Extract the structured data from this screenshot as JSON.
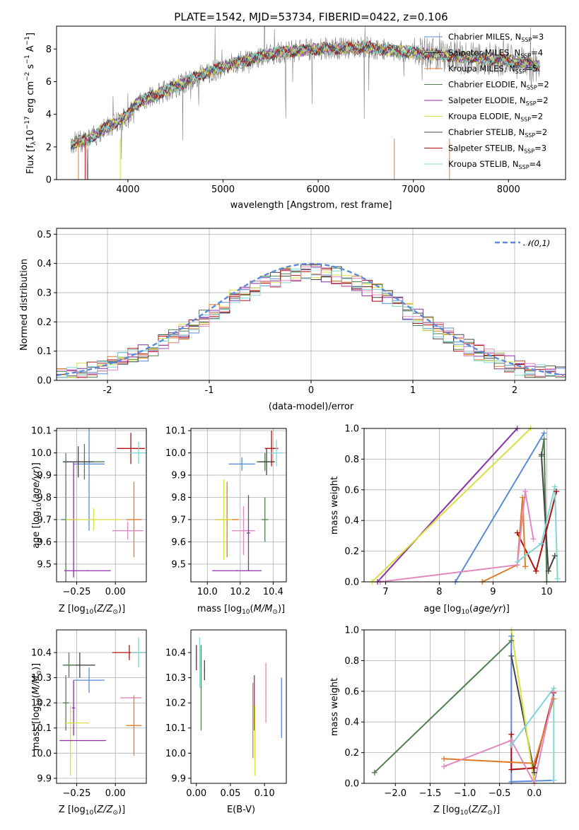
{
  "chart_data": [
    {
      "id": "spectrum",
      "type": "line",
      "title": "PLATE=1542, MJD=53734, FIBERID=0422, z=0.106",
      "xlabel": "wavelength [Angstrom, rest frame]",
      "ylabel": "Flux [f_λ 10^-17 erg cm^-2 s^-1 A^-1]",
      "xlim": [
        3250,
        8600
      ],
      "ylim": [
        0,
        9.4
      ],
      "xticks": [
        4000,
        5000,
        6000,
        7000,
        8000
      ],
      "yticks": [
        0,
        2,
        4,
        6,
        8
      ],
      "grid": false,
      "legend_placement": "top-right",
      "legend": [
        {
          "main": "Chabrier MILES, N",
          "sub": "SSP",
          "tail": "=3",
          "color": "#5b8bd8"
        },
        {
          "main": "Salpeter MILES, N",
          "sub": "SSP",
          "tail": "=4",
          "color": "#333333"
        },
        {
          "main": "Kroupa MILES, N",
          "sub": "SSP",
          "tail": "=5",
          "color": "#e07b2a"
        },
        {
          "main": "Chabrier ELODIE, N",
          "sub": "SSP",
          "tail": "=2",
          "color": "#4f7f4f"
        },
        {
          "main": "Salpeter ELODIE, N",
          "sub": "SSP",
          "tail": "=2",
          "color": "#8b2fa8"
        },
        {
          "main": "Kroupa ELODIE, N",
          "sub": "SSP",
          "tail": "=2",
          "color": "#d8e040"
        },
        {
          "main": "Chabrier STELIB, N",
          "sub": "SSP",
          "tail": "=2",
          "color": "#444444"
        },
        {
          "main": "Salpeter STELIB, N",
          "sub": "SSP",
          "tail": "=3",
          "color": "#b01010"
        },
        {
          "main": "Kroupa STELIB, N",
          "sub": "SSP",
          "tail": "=4",
          "color": "#7fd6d6"
        }
      ],
      "data_color": "#808080",
      "model_color": "#7fd6d6",
      "continuum_x": [
        3400,
        3600,
        3800,
        3950,
        4100,
        4300,
        4500,
        4800,
        5000,
        5300,
        5600,
        6000,
        6500,
        7000,
        7500,
        8000,
        8300
      ],
      "continuum_y": [
        2.2,
        2.5,
        3.3,
        3.7,
        4.7,
        5.2,
        5.7,
        6.5,
        6.9,
        7.4,
        7.8,
        8.0,
        8.1,
        7.8,
        7.5,
        7.3,
        7.0
      ]
    },
    {
      "id": "residuals",
      "type": "bar",
      "xlabel": "(data-model)/error",
      "ylabel": "Normed distribution",
      "xlim": [
        -2.5,
        2.5
      ],
      "ylim": [
        0,
        0.52
      ],
      "xticks": [
        -2,
        -1,
        0,
        1,
        2
      ],
      "yticks": [
        0.0,
        0.1,
        0.2,
        0.3,
        0.4,
        0.5
      ],
      "grid": true,
      "legend_placement": "top-right",
      "legend_label": "𝒩(0,1)",
      "normal_color": "#5b8bd8",
      "bin_width": 0.1,
      "series_colors": [
        "#5b8bd8",
        "#e07b2a",
        "#4f7f4f",
        "#8b2fa8",
        "#d8e040",
        "#444444",
        "#b01010",
        "#7fd6d6",
        "#e088c0"
      ]
    },
    {
      "id": "age-vs-Z",
      "type": "scatter",
      "xlabel": "Z [log10(Z/Z⊙)]",
      "ylabel": "age  [log10(age/yr)]",
      "xlim": [
        -0.38,
        0.2
      ],
      "ylim": [
        9.42,
        10.11
      ],
      "xticks": [
        -0.25,
        0.0
      ],
      "xticklabels": [
        "−0.25",
        "0.00"
      ],
      "yticks": [
        9.5,
        9.6,
        9.7,
        9.8,
        9.9,
        10.0,
        10.1
      ],
      "grid": true,
      "points": [
        {
          "x": -0.17,
          "y": 9.95,
          "xerr": 0.1,
          "yerr": 0.3,
          "color": "#5b8bd8"
        },
        {
          "x": -0.2,
          "y": 9.96,
          "xerr": 0.13,
          "yerr": 0.08,
          "color": "#4f7f4f"
        },
        {
          "x": -0.24,
          "y": 9.96,
          "xerr": 0.1,
          "yerr": 0.07,
          "color": "#444444"
        },
        {
          "x": 0.1,
          "y": 10.02,
          "xerr": 0.09,
          "yerr": 0.07,
          "color": "#b01010"
        },
        {
          "x": 0.15,
          "y": 10.0,
          "xerr": 0.06,
          "yerr": 0.05,
          "color": "#7fd6d6"
        },
        {
          "x": -0.32,
          "y": 9.7,
          "xerr": 0.03,
          "yerr": 0.3,
          "color": "#4f7f4f"
        },
        {
          "x": -0.27,
          "y": 9.7,
          "xerr": 0.02,
          "yerr": 0.26,
          "color": "#8b2fa8"
        },
        {
          "x": -0.14,
          "y": 9.7,
          "xerr": 0.18,
          "yerr": 0.05,
          "color": "#d8e040"
        },
        {
          "x": 0.12,
          "y": 9.7,
          "xerr": 0.05,
          "yerr": 0.17,
          "color": "#e07b2a"
        },
        {
          "x": 0.08,
          "y": 9.65,
          "xerr": 0.1,
          "yerr": 0.04,
          "color": "#e088c0"
        },
        {
          "x": -0.18,
          "y": 9.47,
          "xerr": 0.15,
          "yerr": 0.0,
          "color": "#8b2fa8"
        }
      ]
    },
    {
      "id": "age-vs-mass",
      "type": "scatter",
      "xlabel": "mass [log10(M/M⊙)]",
      "ylabel": "",
      "xlim": [
        9.9,
        10.48
      ],
      "ylim": [
        9.42,
        10.11
      ],
      "xticks": [
        10.0,
        10.2,
        10.4
      ],
      "xticklabels": [
        "10.0",
        "10.2",
        "10.4"
      ],
      "yticks": [
        9.5,
        9.6,
        9.7,
        9.8,
        9.9,
        10.0,
        10.1
      ],
      "grid": true,
      "points": [
        {
          "x": 10.21,
          "y": 9.95,
          "xerr": 0.08,
          "yerr": 0.03,
          "color": "#5b8bd8"
        },
        {
          "x": 10.35,
          "y": 9.96,
          "xerr": 0.05,
          "yerr": 0.04,
          "color": "#4f7f4f"
        },
        {
          "x": 10.36,
          "y": 9.96,
          "xerr": 0.05,
          "yerr": 0.06,
          "color": "#444444"
        },
        {
          "x": 10.39,
          "y": 10.02,
          "xerr": 0.04,
          "yerr": 0.08,
          "color": "#b01010"
        },
        {
          "x": 10.42,
          "y": 10.0,
          "xerr": 0.04,
          "yerr": 0.06,
          "color": "#7fd6d6"
        },
        {
          "x": 10.12,
          "y": 9.7,
          "xerr": 0.07,
          "yerr": 0.17,
          "color": "#e07b2a"
        },
        {
          "x": 10.1,
          "y": 9.7,
          "xerr": 0.05,
          "yerr": 0.18,
          "color": "#d8e040"
        },
        {
          "x": 10.35,
          "y": 9.7,
          "xerr": 0.02,
          "yerr": 0.1,
          "color": "#4f7f4f"
        },
        {
          "x": 10.22,
          "y": 9.65,
          "xerr": 0.07,
          "yerr": 0.11,
          "color": "#e088c0"
        },
        {
          "x": 10.25,
          "y": 9.64,
          "xerr": 0.01,
          "yerr": 0.17,
          "color": "#8b2fa8"
        },
        {
          "x": 10.18,
          "y": 9.47,
          "xerr": 0.15,
          "yerr": 0.0,
          "color": "#8b2fa8"
        }
      ]
    },
    {
      "id": "massweight-vs-age",
      "type": "line",
      "xlabel": "age  [log10(age/yr)]",
      "ylabel": "mass weight",
      "xlim": [
        6.6,
        10.35
      ],
      "ylim": [
        0,
        1.0
      ],
      "xticks": [
        7,
        8,
        9,
        10
      ],
      "yticks": [
        0.0,
        0.2,
        0.4,
        0.6,
        0.8,
        1.0
      ],
      "grid": true,
      "series": [
        {
          "color": "#8b2fa8",
          "x": [
            6.85,
            9.45
          ],
          "y": [
            0.0,
            1.0
          ]
        },
        {
          "color": "#d8e040",
          "x": [
            6.75,
            9.7
          ],
          "y": [
            0.0,
            1.0
          ]
        },
        {
          "color": "#5b8bd8",
          "x": [
            8.3,
            9.95
          ],
          "y": [
            0.0,
            0.97
          ]
        },
        {
          "color": "#4f7f4f",
          "x": [
            9.9,
            9.95,
            10.0
          ],
          "y": [
            0.82,
            0.93,
            0.0
          ]
        },
        {
          "color": "#444444",
          "x": [
            9.9,
            10.03,
            10.15
          ],
          "y": [
            0.83,
            0.07,
            0.17
          ]
        },
        {
          "color": "#b01010",
          "x": [
            9.45,
            9.8,
            10.18
          ],
          "y": [
            0.32,
            0.07,
            0.59
          ]
        },
        {
          "color": "#e07b2a",
          "x": [
            8.8,
            9.45,
            9.55,
            9.6
          ],
          "y": [
            0.0,
            0.11,
            0.55,
            0.1
          ]
        },
        {
          "color": "#e088c0",
          "x": [
            6.9,
            9.45,
            9.6,
            9.75
          ],
          "y": [
            0.0,
            0.11,
            0.59,
            0.28
          ]
        },
        {
          "color": "#7fd6d6",
          "x": [
            9.45,
            9.9,
            10.15,
            10.2
          ],
          "y": [
            0.13,
            0.25,
            0.62,
            0.02
          ]
        }
      ]
    },
    {
      "id": "mass-vs-Z",
      "type": "scatter",
      "xlabel": "Z [log10(Z/Z⊙)]",
      "ylabel": "mass [log10(M/M⊙)]",
      "xlim": [
        -0.38,
        0.2
      ],
      "ylim": [
        9.88,
        10.49
      ],
      "xticks": [
        -0.25,
        0.0
      ],
      "xticklabels": [
        "−0.25",
        "0.00"
      ],
      "yticks": [
        9.9,
        10.0,
        10.1,
        10.2,
        10.3,
        10.4
      ],
      "grid": true,
      "points": [
        {
          "x": -0.17,
          "y": 10.29,
          "xerr": 0.1,
          "yerr": 0.05,
          "color": "#5b8bd8"
        },
        {
          "x": -0.23,
          "y": 10.35,
          "xerr": 0.1,
          "yerr": 0.05,
          "color": "#444444"
        },
        {
          "x": -0.3,
          "y": 10.35,
          "xerr": 0.04,
          "yerr": 0.05,
          "color": "#4f7f4f"
        },
        {
          "x": 0.09,
          "y": 10.4,
          "xerr": 0.11,
          "yerr": 0.03,
          "color": "#b01010"
        },
        {
          "x": 0.15,
          "y": 10.4,
          "xerr": 0.05,
          "yerr": 0.06,
          "color": "#7fd6d6"
        },
        {
          "x": -0.32,
          "y": 10.2,
          "xerr": 0.02,
          "yerr": 0.11,
          "color": "#4f7f4f"
        },
        {
          "x": -0.27,
          "y": 10.18,
          "xerr": 0.01,
          "yerr": 0.11,
          "color": "#8b2fa8"
        },
        {
          "x": -0.25,
          "y": 10.12,
          "xerr": 0.08,
          "yerr": 0.0,
          "color": "#d8e040"
        },
        {
          "x": -0.29,
          "y": 10.05,
          "xerr": 0.01,
          "yerr": 0.14,
          "color": "#d8e040"
        },
        {
          "x": 0.1,
          "y": 10.22,
          "xerr": 0.07,
          "yerr": 0.0,
          "color": "#e088c0"
        },
        {
          "x": 0.12,
          "y": 10.11,
          "xerr": 0.05,
          "yerr": 0.12,
          "color": "#e07b2a"
        },
        {
          "x": -0.21,
          "y": 10.05,
          "xerr": 0.15,
          "yerr": 0.0,
          "color": "#8b2fa8"
        }
      ]
    },
    {
      "id": "mass-vs-ebv",
      "type": "scatter",
      "xlabel": "E(B-V)",
      "ylabel": "",
      "xlim": [
        -0.008,
        0.132
      ],
      "ylim": [
        9.88,
        10.49
      ],
      "xticks": [
        0.0,
        0.05,
        0.1
      ],
      "xticklabels": [
        "0.00",
        "0.05",
        "0.10"
      ],
      "yticks": [
        9.9,
        10.0,
        10.1,
        10.2,
        10.3,
        10.4
      ],
      "grid": false,
      "points": [
        {
          "x": 0.0,
          "y": 10.38,
          "xerr": 0,
          "yerr": 0.05,
          "color": "#b01010"
        },
        {
          "x": 0.005,
          "y": 10.36,
          "xerr": 0,
          "yerr": 0.1,
          "color": "#7fd6d6"
        },
        {
          "x": 0.007,
          "y": 10.26,
          "xerr": 0,
          "yerr": 0.17,
          "color": "#4f7f4f"
        },
        {
          "x": 0.012,
          "y": 10.33,
          "xerr": 0,
          "yerr": 0.04,
          "color": "#444444"
        },
        {
          "x": 0.083,
          "y": 10.13,
          "xerr": 0,
          "yerr": 0.15,
          "color": "#e07b2a"
        },
        {
          "x": 0.085,
          "y": 10.2,
          "xerr": 0,
          "yerr": 0.11,
          "color": "#8b2fa8"
        },
        {
          "x": 0.086,
          "y": 10.05,
          "xerr": 0,
          "yerr": 0.14,
          "color": "#d8e040"
        },
        {
          "x": 0.102,
          "y": 10.24,
          "xerr": 0,
          "yerr": 0.12,
          "color": "#e088c0"
        },
        {
          "x": 0.125,
          "y": 10.18,
          "xerr": 0,
          "yerr": 0.12,
          "color": "#5b8bd8"
        }
      ]
    },
    {
      "id": "massweight-vs-Z",
      "type": "line",
      "xlabel": "Z [log10(Z/Z⊙)]",
      "ylabel": "mass weight",
      "xlim": [
        -2.45,
        0.45
      ],
      "ylim": [
        0,
        1.0
      ],
      "xticks": [
        -2.0,
        -1.5,
        -1.0,
        -0.5,
        0.0
      ],
      "xticklabels": [
        "−2.0",
        "−1.5",
        "−1.0",
        "−0.5",
        "0.0"
      ],
      "yticks": [
        0.0,
        0.2,
        0.4,
        0.6,
        0.8,
        1.0
      ],
      "grid": true,
      "series": [
        {
          "color": "#4f7f4f",
          "x": [
            -2.3,
            -0.33
          ],
          "y": [
            0.07,
            0.93
          ]
        },
        {
          "color": "#5b8bd8",
          "x": [
            -0.33,
            -0.33,
            0.28
          ],
          "y": [
            0.96,
            0.01,
            0.02
          ]
        },
        {
          "color": "#444444",
          "x": [
            -0.33,
            0.0
          ],
          "y": [
            0.83,
            0.07
          ]
        },
        {
          "color": "#d8e040",
          "x": [
            -0.33,
            0.0
          ],
          "y": [
            1.0,
            0.0
          ]
        },
        {
          "color": "#b01010",
          "x": [
            -0.33,
            -0.33,
            0.0,
            0.28
          ],
          "y": [
            0.32,
            0.09,
            0.1,
            0.59
          ]
        },
        {
          "color": "#e07b2a",
          "x": [
            -1.3,
            0.0,
            0.28
          ],
          "y": [
            0.16,
            0.13,
            0.55
          ]
        },
        {
          "color": "#e088c0",
          "x": [
            -1.3,
            -0.33,
            0.0,
            0.28
          ],
          "y": [
            0.11,
            0.28,
            0.0,
            0.6
          ]
        },
        {
          "color": "#7fd6d6",
          "x": [
            -0.33,
            0.28,
            0.28
          ],
          "y": [
            0.25,
            0.62,
            0.02
          ]
        }
      ]
    }
  ]
}
